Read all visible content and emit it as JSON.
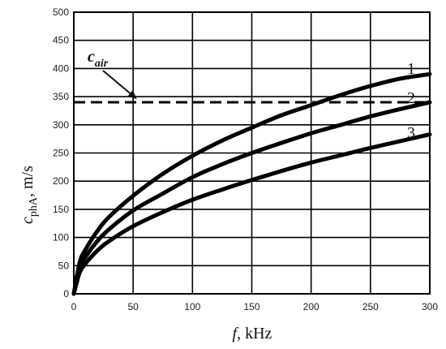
{
  "chart_data": {
    "type": "line",
    "xlabel_var": "f",
    "xlabel_unit": ", kHz",
    "ylabel_var": "c",
    "ylabel_sub": "phA",
    "ylabel_unit": ", m/s",
    "xlim": [
      0,
      300
    ],
    "ylim": [
      0,
      500
    ],
    "xticks": [
      0,
      50,
      100,
      150,
      200,
      250,
      300
    ],
    "yticks": [
      0,
      50,
      100,
      150,
      200,
      250,
      300,
      350,
      400,
      450,
      500
    ],
    "grid": true,
    "x": [
      0,
      5,
      10,
      20,
      30,
      50,
      75,
      100,
      125,
      150,
      175,
      200,
      225,
      250,
      275,
      300
    ],
    "series": [
      {
        "label": "1",
        "values": [
          0,
          56,
          79,
          112,
          137,
          174,
          213,
          245,
          272,
          295,
          317,
          335,
          353,
          369,
          382,
          390
        ]
      },
      {
        "label": "2",
        "values": [
          0,
          47,
          66,
          94,
          115,
          148,
          178,
          207,
          230,
          250,
          268,
          285,
          300,
          315,
          328,
          340
        ]
      },
      {
        "label": "3",
        "values": [
          0,
          38,
          54,
          77,
          94,
          120,
          145,
          167,
          185,
          202,
          218,
          233,
          246,
          259,
          271,
          283
        ]
      }
    ],
    "reference_line": {
      "y": 340,
      "style": "dashed"
    },
    "annotation": {
      "base": "c",
      "sub": "air",
      "arrow_to_x": 45,
      "arrow_to_y": 340
    }
  }
}
